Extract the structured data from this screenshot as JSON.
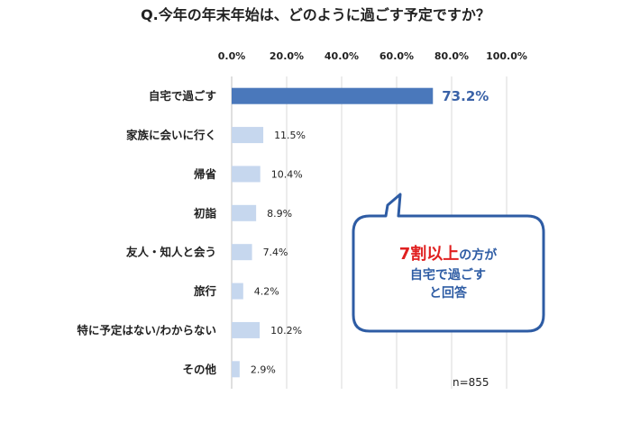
{
  "title": "Q.今年の年末年始は、どのように過ごす予定ですか？",
  "chart_data": {
    "type": "bar",
    "orientation": "horizontal",
    "title": "Q.今年の年末年始は、どのように過ごす予定ですか？",
    "categories": [
      "自宅で過ごす",
      "家族に会いに行く",
      "帰省",
      "初詣",
      "友人・知人と会う",
      "旅行",
      "特に予定はない/わからない",
      "その他"
    ],
    "values": [
      73.2,
      11.5,
      10.4,
      8.9,
      7.4,
      4.2,
      10.2,
      2.9
    ],
    "value_labels": [
      "73.2%",
      "11.5%",
      "10.4%",
      "8.9%",
      "7.4%",
      "4.2%",
      "10.2%",
      "2.9%"
    ],
    "xlim": [
      0,
      100
    ],
    "x_ticks": [
      "0.0%",
      "20.0%",
      "40.0%",
      "60.0%",
      "80.0%",
      "100.0%"
    ],
    "x_axis_position": "top",
    "grid": true,
    "highlight_index": 0,
    "colors": {
      "highlight": "#4a78bb",
      "bar": "#c6d7ee",
      "callout_border": "#2e5ca4",
      "callout_emphasis": "#e02020",
      "grid": "#d9d9d9"
    }
  },
  "callout": {
    "emphasis": "7割以上",
    "line1_rest": "の方が",
    "line2": "自宅で過ごす",
    "line3": "と回答"
  },
  "sample_note": "n=855"
}
